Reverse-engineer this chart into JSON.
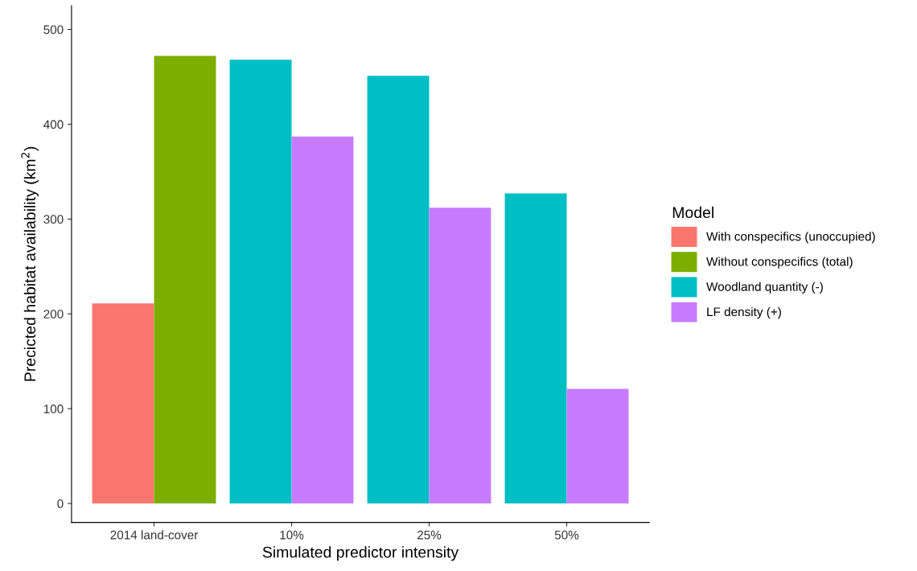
{
  "chart_data": {
    "type": "bar",
    "xlabel": "Simulated predictor intensity",
    "ylabel": "Precicted habitat availability (km$^{2}$)",
    "legend_title": "Model",
    "categories": [
      "2014 land-cover",
      "10%",
      "25%",
      "50%"
    ],
    "series": [
      {
        "name": "With conspecifics (unoccupied)",
        "color": "#f8766d",
        "values": [
          211,
          null,
          null,
          null
        ]
      },
      {
        "name": "Without conspecifics (total)",
        "color": "#7cae00",
        "values": [
          472,
          null,
          null,
          null
        ]
      },
      {
        "name": "Woodland quantity (-)",
        "color": "#00bfc4",
        "values": [
          null,
          468,
          451,
          327
        ]
      },
      {
        "name": "LF density (+)",
        "color": "#c77cff",
        "values": [
          null,
          387,
          312,
          121
        ]
      }
    ],
    "ylim": [
      -20,
      525
    ],
    "yticks": [
      0,
      100,
      200,
      300,
      400,
      500
    ],
    "grid": false,
    "legend": "right"
  }
}
